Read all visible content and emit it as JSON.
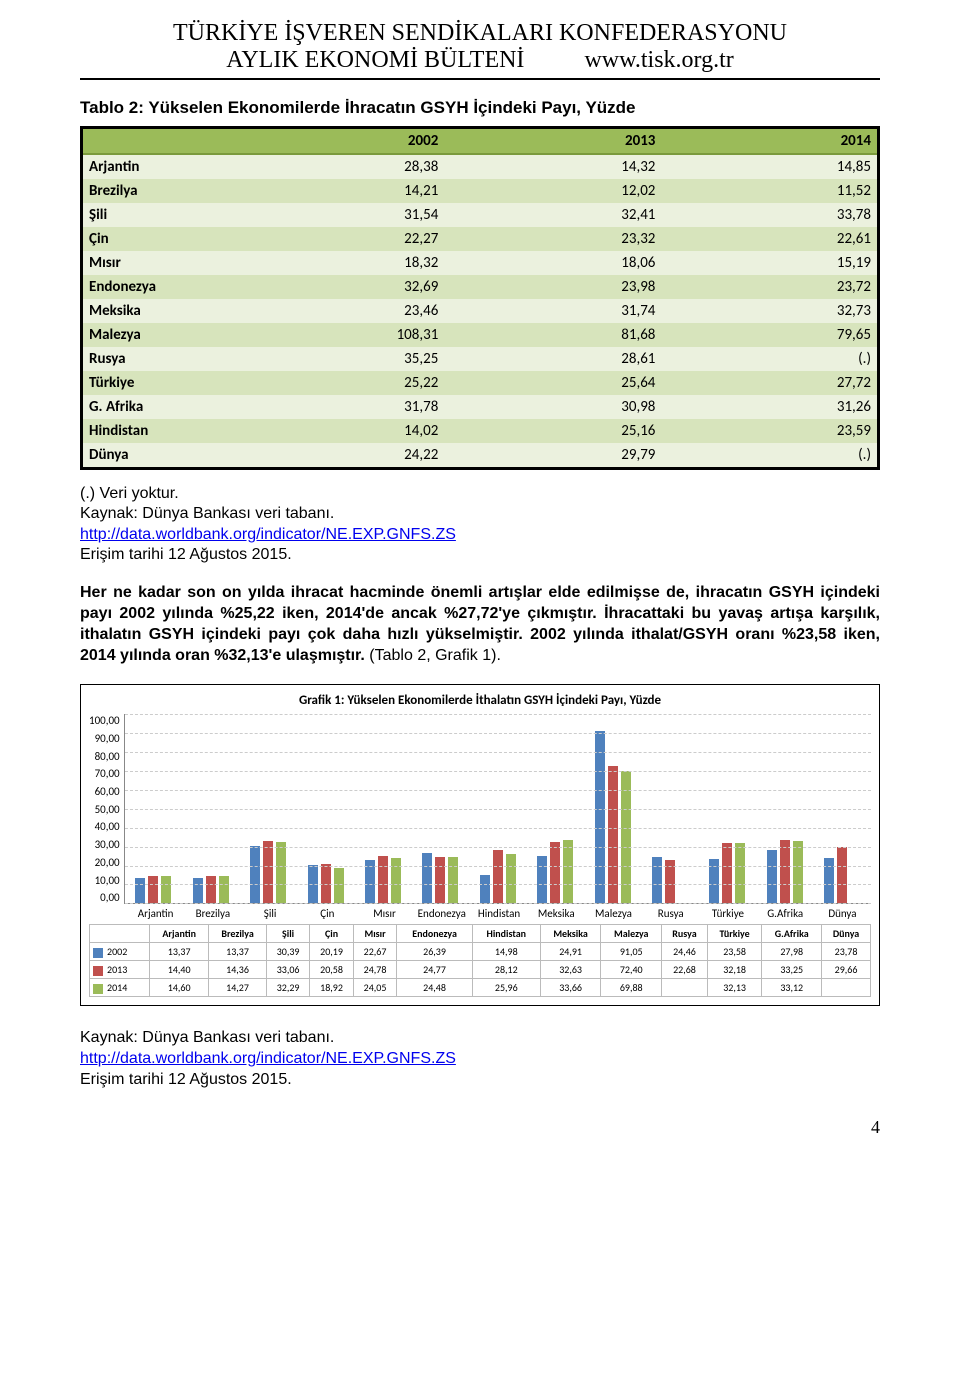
{
  "header": {
    "title1": "TÜRKİYE İŞVEREN SENDİKALARI KONFEDERASYONU",
    "subtitle": "AYLIK EKONOMİ BÜLTENİ",
    "url": "www.tisk.org.tr"
  },
  "table2": {
    "title": "Tablo 2: Yükselen Ekonomilerde İhracatın GSYH İçindeki Payı, Yüzde",
    "columns": [
      "2002",
      "2013",
      "2014"
    ],
    "rows": [
      {
        "label": "Arjantin",
        "vals": [
          "28,38",
          "14,32",
          "14,85"
        ]
      },
      {
        "label": "Brezilya",
        "vals": [
          "14,21",
          "12,02",
          "11,52"
        ]
      },
      {
        "label": "Şili",
        "vals": [
          "31,54",
          "32,41",
          "33,78"
        ]
      },
      {
        "label": "Çin",
        "vals": [
          "22,27",
          "23,32",
          "22,61"
        ]
      },
      {
        "label": "Mısır",
        "vals": [
          "18,32",
          "18,06",
          "15,19"
        ]
      },
      {
        "label": "Endonezya",
        "vals": [
          "32,69",
          "23,98",
          "23,72"
        ]
      },
      {
        "label": "Meksika",
        "vals": [
          "23,46",
          "31,74",
          "32,73"
        ]
      },
      {
        "label": "Malezya",
        "vals": [
          "108,31",
          "81,68",
          "79,65"
        ]
      },
      {
        "label": "Rusya",
        "vals": [
          "35,25",
          "28,61",
          "(.)"
        ]
      },
      {
        "label": "Türkiye",
        "vals": [
          "25,22",
          "25,64",
          "27,72"
        ]
      },
      {
        "label": "G. Afrika",
        "vals": [
          "31,78",
          "30,98",
          "31,26"
        ]
      },
      {
        "label": "Hindistan",
        "vals": [
          "14,02",
          "25,16",
          "23,59"
        ]
      },
      {
        "label": "Dünya",
        "vals": [
          "24,22",
          "29,79",
          "(.)"
        ]
      }
    ]
  },
  "notes": {
    "line1": "(.) Veri yoktur.",
    "line2": "Kaynak: Dünya Bankası veri tabanı.",
    "link_text": "http://data.worldbank.org/indicator/NE.EXP.GNFS.ZS",
    "line4": "Erişim tarihi 12 Ağustos 2015."
  },
  "paragraph": {
    "text_before_paren": "Her ne kadar son on yılda ihracat hacminde önemli artışlar elde edilmişse de, ihracatın GSYH içindeki payı 2002 yılında %25,22 iken, 2014'de ancak %27,72'ye çıkmıştır. İhracattaki bu yavaş artışa karşılık, ithalatın GSYH içindeki payı çok daha hızlı yükselmiştir. 2002 yılında ithalat/GSYH oranı %23,58 iken, 2014 yılında oran %32,13'e ulaşmıştır.",
    "paren": " (Tablo 2, Grafik 1)."
  },
  "chart": {
    "type": "bar",
    "title": "Grafik 1: Yükselen Ekonomilerde İthalatın GSYH İçindeki Payı, Yüzde",
    "ymax": 100,
    "ystep": 10,
    "yticks": [
      "100,00",
      "90,00",
      "80,00",
      "70,00",
      "60,00",
      "50,00",
      "40,00",
      "30,00",
      "20,00",
      "10,00",
      "0,00"
    ],
    "categories": [
      "Arjantin",
      "Brezilya",
      "Şili",
      "Çin",
      "Mısır",
      "Endonezya",
      "Hindistan",
      "Meksika",
      "Malezya",
      "Rusya",
      "Türkiye",
      "G.Afrika",
      "Dünya"
    ],
    "series": [
      {
        "name": "2002",
        "color": "#4f81bd",
        "values": [
          13.37,
          13.37,
          30.39,
          20.19,
          22.67,
          26.39,
          14.98,
          24.91,
          91.05,
          24.46,
          23.58,
          27.98,
          23.78
        ],
        "display": [
          "13,37",
          "13,37",
          "30,39",
          "20,19",
          "22,67",
          "26,39",
          "14,98",
          "24,91",
          "91,05",
          "24,46",
          "23,58",
          "27,98",
          "23,78"
        ]
      },
      {
        "name": "2013",
        "color": "#c0504d",
        "values": [
          14.4,
          14.36,
          33.06,
          20.58,
          24.78,
          24.77,
          28.12,
          32.63,
          72.4,
          22.68,
          32.18,
          33.25,
          29.66
        ],
        "display": [
          "14,40",
          "14,36",
          "33,06",
          "20,58",
          "24,78",
          "24,77",
          "28,12",
          "32,63",
          "72,40",
          "22,68",
          "32,18",
          "33,25",
          "29,66"
        ]
      },
      {
        "name": "2014",
        "color": "#9bbb59",
        "values": [
          14.6,
          14.27,
          32.29,
          18.92,
          24.05,
          24.48,
          25.96,
          33.66,
          69.88,
          null,
          32.13,
          33.12,
          null
        ],
        "display": [
          "14,60",
          "14,27",
          "32,29",
          "18,92",
          "24,05",
          "24,48",
          "25,96",
          "33,66",
          "69,88",
          "",
          "32,13",
          "33,12",
          ""
        ]
      }
    ],
    "background_color": "#ffffff",
    "grid_color": "#cccccc"
  },
  "footer_source": {
    "line1": "Kaynak: Dünya Bankası veri tabanı.",
    "link_text": "http://data.worldbank.org/indicator/NE.EXP.GNFS.ZS",
    "line3": "Erişim tarihi 12 Ağustos 2015."
  },
  "page_number": "4"
}
